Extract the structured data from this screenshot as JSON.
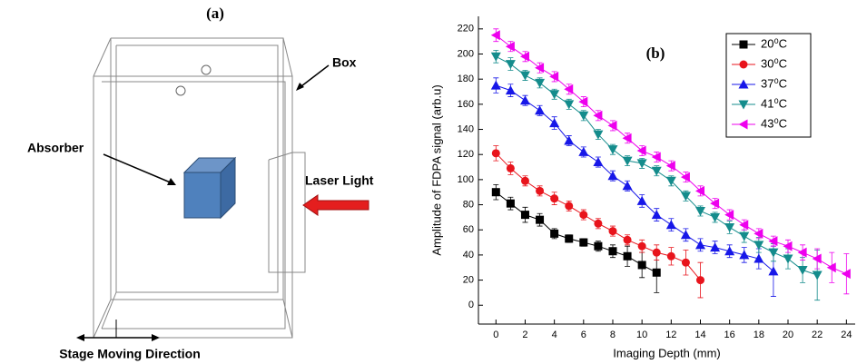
{
  "diagram": {
    "panel_label": "(a)",
    "box_label": "Box",
    "absorber_label": "Absorber",
    "laser_label": "Laser Light",
    "stage_label": "Stage Moving Direction"
  },
  "chart_data": {
    "type": "line",
    "panel_label": "(b)",
    "x_label": "Imaging Depth (mm)",
    "y_label": "Amplitude of FDPA signal (arb.u)",
    "xlim": [
      -1.2,
      24.6
    ],
    "ylim": [
      -15,
      230
    ],
    "xticks": [
      0,
      2,
      4,
      6,
      8,
      10,
      12,
      14,
      16,
      18,
      20,
      22,
      24
    ],
    "yticks": [
      0,
      20,
      40,
      60,
      80,
      100,
      120,
      140,
      160,
      180,
      200,
      220
    ],
    "legend": "top-right",
    "series": [
      {
        "name": "20⁰C",
        "color": "#000000",
        "marker": "square",
        "x": [
          0,
          1,
          2,
          3,
          4,
          5,
          6,
          7,
          8,
          9,
          10,
          11
        ],
        "values": [
          90,
          81,
          72,
          68,
          57,
          53,
          50,
          47,
          43,
          39,
          32,
          26
        ],
        "errors": [
          6,
          5,
          6,
          5,
          4,
          3,
          3,
          4,
          5,
          8,
          10,
          16
        ]
      },
      {
        "name": "30⁰C",
        "color": "#e8141c",
        "marker": "circle",
        "x": [
          0,
          1,
          2,
          3,
          4,
          5,
          6,
          7,
          8,
          9,
          10,
          11,
          12,
          13,
          14
        ],
        "values": [
          121,
          109,
          99,
          91,
          85,
          79,
          72,
          65,
          59,
          52,
          47,
          42,
          39,
          34,
          20
        ],
        "errors": [
          6,
          5,
          4,
          4,
          5,
          4,
          4,
          4,
          4,
          4,
          5,
          6,
          7,
          10,
          14
        ]
      },
      {
        "name": "37⁰C",
        "color": "#1717e8",
        "marker": "triangle-up",
        "x": [
          0,
          1,
          2,
          3,
          4,
          5,
          6,
          7,
          8,
          9,
          10,
          11,
          12,
          13,
          14,
          15,
          16,
          17,
          18,
          19
        ],
        "values": [
          175,
          171,
          163,
          155,
          145,
          131,
          122,
          114,
          103,
          95,
          83,
          72,
          64,
          56,
          48,
          46,
          43,
          40,
          37,
          27
        ],
        "errors": [
          6,
          5,
          4,
          4,
          5,
          4,
          4,
          4,
          4,
          4,
          5,
          5,
          5,
          5,
          5,
          5,
          5,
          6,
          8,
          20
        ]
      },
      {
        "name": "41⁰C",
        "color": "#148c8c",
        "marker": "triangle-down",
        "x": [
          0,
          1,
          2,
          3,
          4,
          5,
          6,
          7,
          8,
          9,
          10,
          11,
          12,
          13,
          14,
          15,
          16,
          17,
          18,
          19,
          20,
          21,
          22
        ],
        "values": [
          198,
          192,
          183,
          177,
          168,
          160,
          151,
          136,
          124,
          115,
          113,
          107,
          99,
          87,
          75,
          70,
          62,
          55,
          48,
          42,
          37,
          28,
          24
        ],
        "errors": [
          5,
          5,
          4,
          4,
          4,
          4,
          4,
          4,
          4,
          4,
          4,
          4,
          4,
          4,
          4,
          4,
          5,
          5,
          6,
          7,
          8,
          10,
          20
        ]
      },
      {
        "name": "43⁰C",
        "color": "#ee00ee",
        "marker": "triangle-left",
        "x": [
          0,
          1,
          2,
          3,
          4,
          5,
          6,
          7,
          8,
          9,
          10,
          11,
          12,
          13,
          14,
          15,
          16,
          17,
          18,
          19,
          20,
          21,
          22,
          23,
          24
        ],
        "values": [
          215,
          206,
          198,
          189,
          182,
          172,
          162,
          151,
          143,
          133,
          123,
          118,
          111,
          102,
          91,
          81,
          72,
          64,
          57,
          51,
          47,
          42,
          37,
          30,
          25
        ],
        "errors": [
          5,
          4,
          4,
          4,
          4,
          4,
          4,
          4,
          4,
          4,
          4,
          4,
          4,
          4,
          4,
          4,
          4,
          4,
          4,
          4,
          5,
          6,
          8,
          12,
          16
        ]
      }
    ]
  }
}
